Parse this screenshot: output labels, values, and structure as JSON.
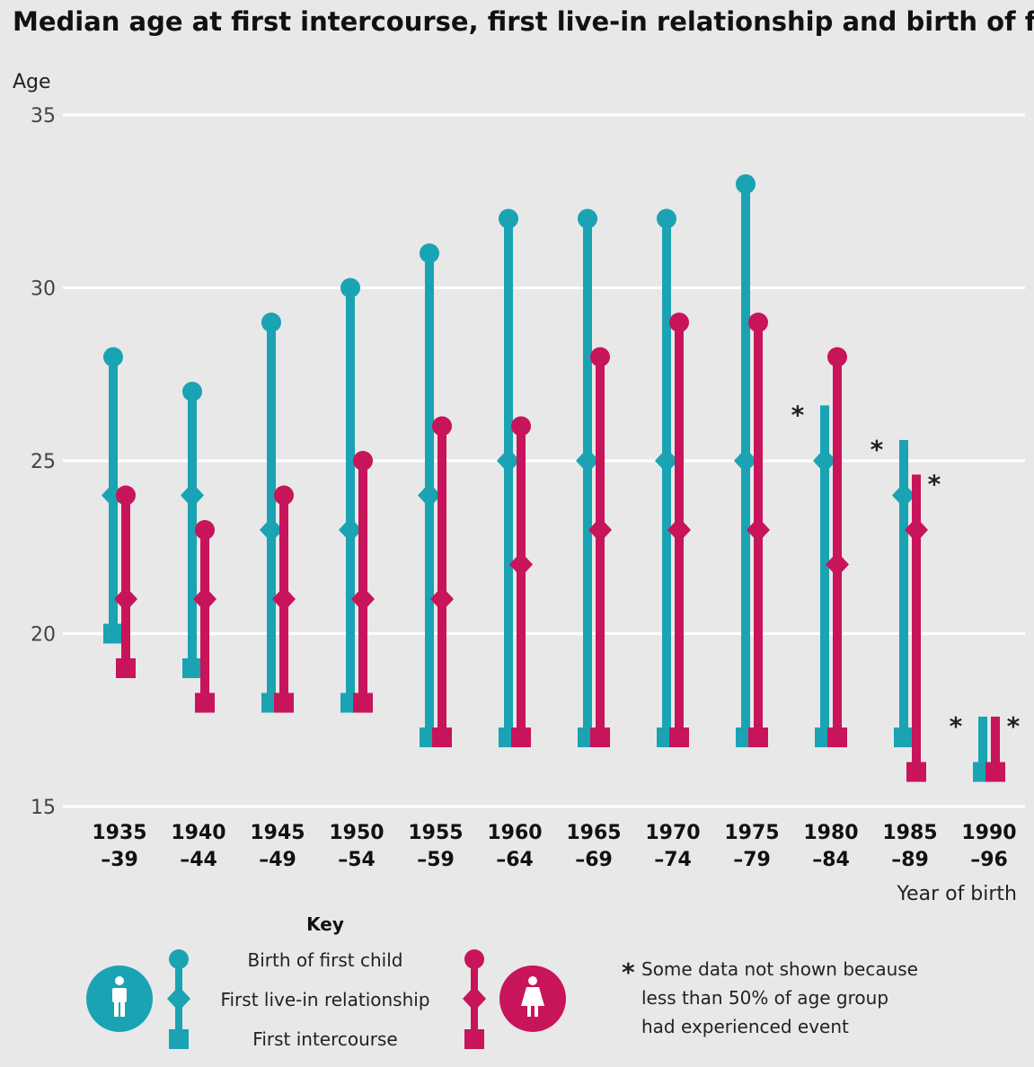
{
  "chart_data": {
    "type": "range-dot",
    "title": "Median age at first intercourse, first live-in relationship and birth of first child",
    "ylabel": "Age",
    "xlabel": "Year of birth",
    "ylim": [
      15,
      35
    ],
    "yticks": [
      "15",
      "20",
      "25",
      "30",
      "35"
    ],
    "grid": true,
    "categories": [
      {
        "line1": "1935",
        "line2": "–39"
      },
      {
        "line1": "1940",
        "line2": "–44"
      },
      {
        "line1": "1945",
        "line2": "–49"
      },
      {
        "line1": "1950",
        "line2": "–54"
      },
      {
        "line1": "1955",
        "line2": "–59"
      },
      {
        "line1": "1960",
        "line2": "–64"
      },
      {
        "line1": "1965",
        "line2": "–69"
      },
      {
        "line1": "1970",
        "line2": "–74"
      },
      {
        "line1": "1975",
        "line2": "–79"
      },
      {
        "line1": "1980",
        "line2": "–84"
      },
      {
        "line1": "1985",
        "line2": "–89"
      },
      {
        "line1": "1990",
        "line2": "–96"
      }
    ],
    "series": [
      {
        "name": "Men",
        "color": "#1aa3b3",
        "birth_of_first_child": [
          28,
          27,
          29,
          30,
          31,
          32,
          32,
          32,
          33,
          null,
          null,
          null
        ],
        "first_live_in_relationship": [
          24,
          24,
          23,
          23,
          24,
          25,
          25,
          25,
          25,
          25,
          24,
          null
        ],
        "first_intercourse": [
          20,
          19,
          18,
          18,
          17,
          17,
          17,
          17,
          17,
          17,
          17,
          16
        ],
        "range_top_when_not_shown": [
          null,
          null,
          null,
          null,
          null,
          null,
          null,
          null,
          null,
          26.6,
          25.6,
          17.6
        ],
        "asterisk": [
          false,
          false,
          false,
          false,
          false,
          false,
          false,
          false,
          false,
          true,
          true,
          true
        ]
      },
      {
        "name": "Women",
        "color": "#c8145a",
        "birth_of_first_child": [
          null,
          null,
          null,
          null,
          null,
          null,
          28,
          29,
          29,
          28,
          null,
          null
        ],
        "first_live_in_relationship": [
          21,
          21,
          21,
          21,
          21,
          22,
          23,
          23,
          23,
          22,
          23,
          null
        ],
        "first_intercourse": [
          19,
          18,
          18,
          18,
          17,
          17,
          17,
          17,
          17,
          17,
          16,
          16
        ],
        "top_marker_value": [
          24,
          23,
          24,
          25,
          26,
          26,
          28,
          29,
          29,
          28,
          null,
          null
        ],
        "range_top_when_not_shown": [
          null,
          null,
          null,
          null,
          null,
          null,
          null,
          null,
          null,
          null,
          24.6,
          17.6
        ],
        "asterisk": [
          false,
          false,
          false,
          false,
          false,
          false,
          false,
          false,
          false,
          false,
          true,
          true
        ]
      }
    ]
  },
  "key": {
    "title": "Key",
    "birth": "Birth of first child",
    "relationship": "First live-in relationship",
    "intercourse": "First intercourse"
  },
  "note": {
    "line1": "Some data not shown because",
    "line2": "less than 50% of age group",
    "line3": "had experienced event"
  },
  "colors": {
    "men": "#1aa3b3",
    "women": "#c8145a",
    "grid": "#ffffff",
    "background": "#e8e8e8"
  }
}
